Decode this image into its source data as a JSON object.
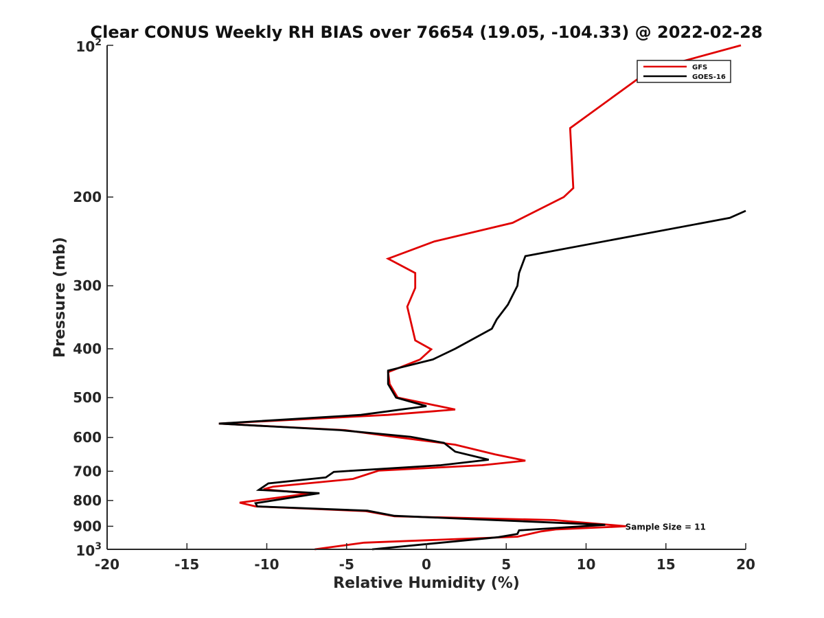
{
  "chart_data": {
    "type": "line",
    "title": "Clear CONUS Weekly RH BIAS over 76654 (19.05, -104.33) @ 2022-02-28",
    "xlabel": "Relative Humidity (%)",
    "ylabel": "Pressure (mb)",
    "xlim": [
      -20,
      20
    ],
    "ylim": [
      100,
      1000
    ],
    "yscale": "log",
    "y_reversed": true,
    "grid": false,
    "x_ticks": [
      -20,
      -15,
      -10,
      -5,
      0,
      5,
      10,
      15,
      20
    ],
    "x_tick_labels": [
      "-20",
      "-15",
      "-10",
      "-5",
      "0",
      "5",
      "10",
      "15",
      "20"
    ],
    "y_ticks": [
      200,
      300,
      400,
      500,
      600,
      700,
      800,
      900
    ],
    "y_tick_labels": [
      "200",
      "300",
      "400",
      "500",
      "600",
      "700",
      "800",
      "900"
    ],
    "y_endpoint_labels": [
      {
        "value": 100,
        "base": "10",
        "exp": "2"
      },
      {
        "value": 1000,
        "base": "10",
        "exp": "3"
      }
    ],
    "legend": {
      "position": "top-right",
      "entries": [
        "GFS",
        "GOES-16"
      ]
    },
    "annotation": {
      "text": "Sample Size = 11",
      "x": 12.5,
      "y": 900
    },
    "series": [
      {
        "name": "GFS",
        "color": "#e00000",
        "points": [
          [
            19.7,
            100
          ],
          [
            14,
            112
          ],
          [
            9,
            146
          ],
          [
            9.2,
            192
          ],
          [
            8.6,
            200
          ],
          [
            5.4,
            225
          ],
          [
            0.5,
            245
          ],
          [
            -2.4,
            265
          ],
          [
            -0.7,
            283
          ],
          [
            -0.7,
            303
          ],
          [
            -1.2,
            330
          ],
          [
            -0.7,
            385
          ],
          [
            0.3,
            401
          ],
          [
            -0.4,
            420
          ],
          [
            -2.4,
            445
          ],
          [
            -2.3,
            470
          ],
          [
            -1.8,
            500
          ],
          [
            1.8,
            528
          ],
          [
            -2.4,
            541
          ],
          [
            -13,
            563
          ],
          [
            -5.1,
            580
          ],
          [
            -2.2,
            597
          ],
          [
            1.8,
            620
          ],
          [
            4.3,
            648
          ],
          [
            6.2,
            667
          ],
          [
            3.5,
            681
          ],
          [
            -3,
            698
          ],
          [
            -4.6,
            725
          ],
          [
            -9.6,
            751
          ],
          [
            -10.2,
            760
          ],
          [
            -7.3,
            775
          ],
          [
            -11.7,
            808
          ],
          [
            -10.7,
            822
          ],
          [
            -3.8,
            840
          ],
          [
            -2,
            860
          ],
          [
            8,
            875
          ],
          [
            12.5,
            900
          ],
          [
            8.1,
            913
          ],
          [
            7.2,
            921
          ],
          [
            5.7,
            944
          ],
          [
            -3.9,
            970
          ],
          [
            -7,
            1000
          ]
        ]
      },
      {
        "name": "GOES-16",
        "color": "#000000",
        "points": [
          [
            20,
            213
          ],
          [
            19,
            220
          ],
          [
            6.2,
            262
          ],
          [
            5.8,
            283
          ],
          [
            5.7,
            300
          ],
          [
            5.1,
            327
          ],
          [
            4.4,
            350
          ],
          [
            4.1,
            365
          ],
          [
            1.8,
            400
          ],
          [
            0.4,
            420
          ],
          [
            -2.4,
            442
          ],
          [
            -2.4,
            470
          ],
          [
            -1.9,
            500
          ],
          [
            0,
            520
          ],
          [
            -4.1,
            541
          ],
          [
            -13,
            563
          ],
          [
            -5.4,
            580
          ],
          [
            -1,
            598
          ],
          [
            1.1,
            615
          ],
          [
            1.8,
            640
          ],
          [
            3.9,
            664
          ],
          [
            0.9,
            681
          ],
          [
            -5.8,
            702
          ],
          [
            -6.3,
            720
          ],
          [
            -9.9,
            740
          ],
          [
            -10.5,
            762
          ],
          [
            -6.7,
            774
          ],
          [
            -10.7,
            810
          ],
          [
            -10.6,
            822
          ],
          [
            -3.7,
            838
          ],
          [
            -2,
            858
          ],
          [
            11.2,
            894
          ],
          [
            5.8,
            917
          ],
          [
            5.7,
            932
          ],
          [
            4.5,
            946
          ],
          [
            -3.4,
            1000
          ]
        ]
      }
    ]
  }
}
